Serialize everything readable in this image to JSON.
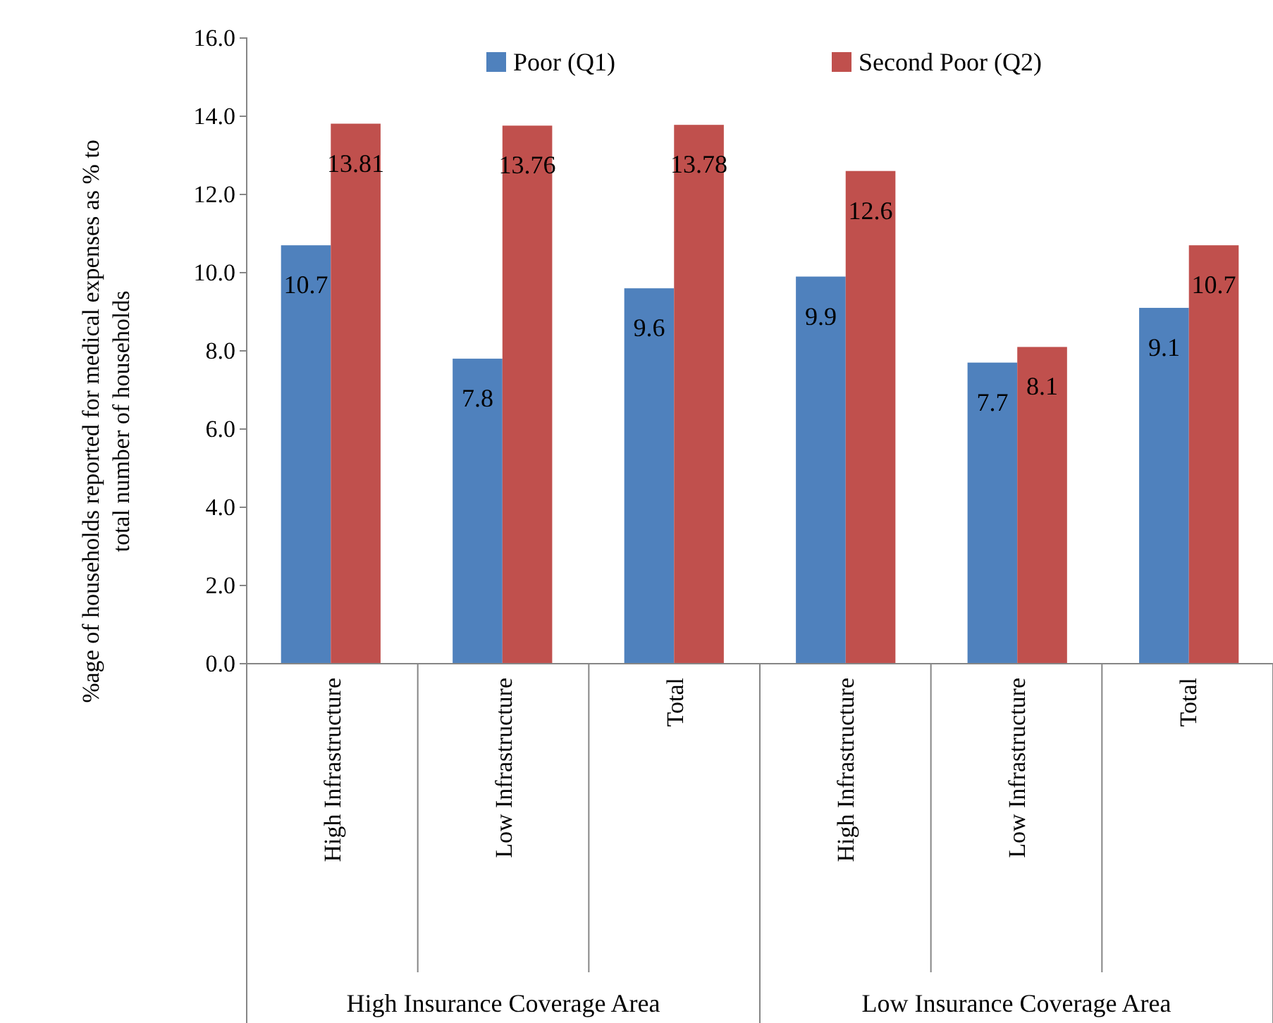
{
  "chart_data": {
    "type": "bar",
    "ylabel": "%age of households reported for medical expenses as % to total number of households",
    "categories": [
      "High Infrastructure",
      "Low Infrastructure",
      "Total",
      "High Infrastructure",
      "Low Infrastructure",
      "Total"
    ],
    "series": [
      {
        "name": "Poor (Q1)",
        "color": "#4f81bd",
        "values": [
          10.7,
          7.8,
          9.6,
          9.9,
          7.7,
          9.1
        ]
      },
      {
        "name": "Second Poor (Q2)",
        "color": "#c0504d",
        "values": [
          13.81,
          13.76,
          13.78,
          12.6,
          8.1,
          10.7
        ]
      }
    ],
    "annotations": [
      "High Insurance Coverage Area",
      "Low Insurance Coverage Area"
    ],
    "ylim": [
      0,
      16
    ],
    "yticks": [
      {
        "value": 0,
        "label": "0.0"
      },
      {
        "value": 2,
        "label": "2.0"
      },
      {
        "value": 4,
        "label": "4.0"
      },
      {
        "value": 6,
        "label": "6.0"
      },
      {
        "value": 8,
        "label": "8.0"
      },
      {
        "value": 10,
        "label": "10.0"
      },
      {
        "value": 12,
        "label": "12.0"
      },
      {
        "value": 14,
        "label": "14.0"
      },
      {
        "value": 16,
        "label": "16.0"
      }
    ],
    "data_labels": true,
    "legend": "top",
    "grid": false
  }
}
